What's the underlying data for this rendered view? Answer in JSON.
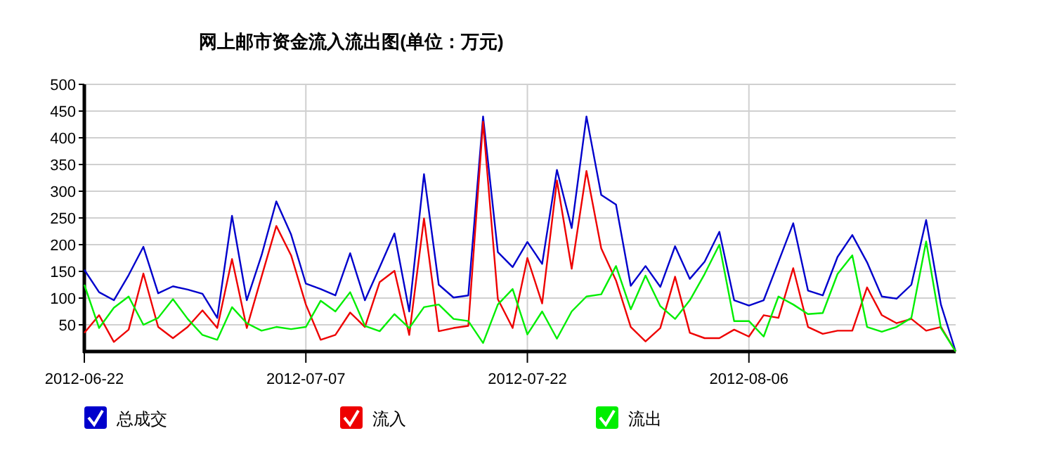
{
  "chart_data": {
    "type": "line",
    "title": "网上邮市资金流入流出图(单位：万元)",
    "x": [
      "2012-06-22",
      "2012-06-23",
      "2012-06-24",
      "2012-06-25",
      "2012-06-26",
      "2012-06-27",
      "2012-06-28",
      "2012-06-29",
      "2012-06-30",
      "2012-07-01",
      "2012-07-02",
      "2012-07-03",
      "2012-07-04",
      "2012-07-05",
      "2012-07-06",
      "2012-07-07",
      "2012-07-08",
      "2012-07-09",
      "2012-07-10",
      "2012-07-11",
      "2012-07-12",
      "2012-07-13",
      "2012-07-14",
      "2012-07-15",
      "2012-07-16",
      "2012-07-17",
      "2012-07-18",
      "2012-07-19",
      "2012-07-20",
      "2012-07-21",
      "2012-07-22",
      "2012-07-23",
      "2012-07-24",
      "2012-07-25",
      "2012-07-26",
      "2012-07-27",
      "2012-07-28",
      "2012-07-29",
      "2012-07-30",
      "2012-07-31",
      "2012-08-01",
      "2012-08-02",
      "2012-08-03",
      "2012-08-04",
      "2012-08-05",
      "2012-08-06",
      "2012-08-07",
      "2012-08-08",
      "2012-08-09",
      "2012-08-10",
      "2012-08-11",
      "2012-08-12",
      "2012-08-13",
      "2012-08-14",
      "2012-08-15",
      "2012-08-16",
      "2012-08-17",
      "2012-08-18",
      "2012-08-19",
      "2012-08-20"
    ],
    "series": [
      {
        "name": "总成交",
        "color": "#0000cc",
        "values": [
          153,
          111,
          96,
          143,
          196,
          109,
          122,
          116,
          108,
          63,
          254,
          96,
          180,
          281,
          219,
          127,
          117,
          105,
          184,
          96,
          158,
          221,
          75,
          332,
          125,
          101,
          105,
          440,
          186,
          158,
          205,
          164,
          340,
          231,
          440,
          293,
          275,
          123,
          160,
          121,
          197,
          136,
          168,
          224,
          96,
          86,
          96,
          168,
          240,
          114,
          105,
          177,
          218,
          167,
          103,
          99,
          125,
          246,
          88,
          0
        ]
      },
      {
        "name": "流入",
        "color": "#ee0000",
        "values": [
          35,
          68,
          18,
          41,
          146,
          46,
          25,
          46,
          77,
          44,
          173,
          44,
          140,
          235,
          180,
          88,
          22,
          31,
          73,
          46,
          130,
          151,
          31,
          249,
          38,
          44,
          48,
          430,
          98,
          44,
          175,
          90,
          320,
          155,
          338,
          193,
          133,
          46,
          19,
          44,
          140,
          35,
          25,
          25,
          41,
          28,
          68,
          63,
          156,
          46,
          33,
          39,
          39,
          120,
          68,
          53,
          61,
          39,
          46,
          0
        ]
      },
      {
        "name": "流出",
        "color": "#00ee00",
        "values": [
          125,
          44,
          82,
          103,
          50,
          63,
          98,
          61,
          31,
          22,
          83,
          53,
          39,
          46,
          42,
          46,
          95,
          75,
          111,
          48,
          38,
          70,
          44,
          83,
          88,
          61,
          57,
          16,
          88,
          117,
          32,
          75,
          24,
          75,
          103,
          107,
          160,
          79,
          142,
          85,
          61,
          96,
          145,
          200,
          57,
          57,
          28,
          103,
          88,
          70,
          72,
          145,
          180,
          46,
          37,
          46,
          63,
          206,
          44,
          0
        ]
      }
    ],
    "xlim": [
      "2012-06-22",
      "2012-08-20"
    ],
    "xticks": [
      "2012-06-22",
      "2012-07-07",
      "2012-07-22",
      "2012-08-06"
    ],
    "ylim": [
      0,
      500
    ],
    "yticks": [
      50,
      100,
      150,
      200,
      250,
      300,
      350,
      400,
      450,
      500
    ],
    "grid": true,
    "legend": "bottom",
    "marker": "none",
    "line_style": "solid"
  }
}
